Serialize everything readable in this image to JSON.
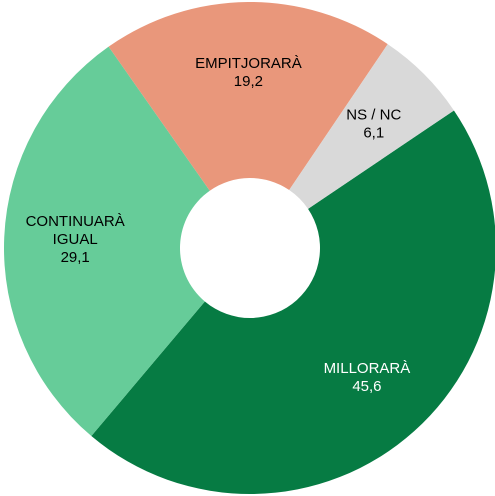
{
  "chart_data": {
    "type": "donut",
    "categories": [
      "MILLORARÀ",
      "CONTINUARÀ IGUAL",
      "EMPITJORARÀ",
      "NS / NC"
    ],
    "values": [
      45.6,
      29.1,
      19.2,
      6.1
    ],
    "value_labels": [
      "45,6",
      "29,1",
      "19,2",
      "6,1"
    ],
    "colors": [
      "#067b43",
      "#66cc99",
      "#e9977b",
      "#d9d9d9"
    ],
    "label_colors": [
      "#ffffff",
      "#000000",
      "#000000",
      "#000000"
    ]
  }
}
